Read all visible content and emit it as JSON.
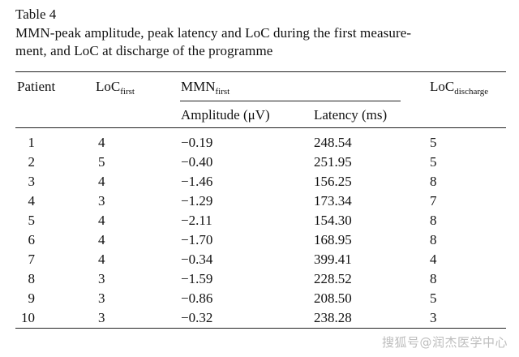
{
  "table": {
    "number": "Table 4",
    "caption_line1": "MMN-peak amplitude, peak latency and LoC during the first measure-",
    "caption_line2": "ment, and LoC at discharge of the programme",
    "headers": {
      "patient": "Patient",
      "loc_first_main": "LoC",
      "loc_first_sub": "first",
      "mmn_main": "MMN",
      "mmn_sub": "first",
      "amplitude": "Amplitude (μV)",
      "latency": "Latency (ms)",
      "loc_discharge_main": "LoC",
      "loc_discharge_sub": "discharge"
    },
    "rows": [
      {
        "patient": "1",
        "loc_first": "4",
        "amplitude": "−0.19",
        "latency": "248.54",
        "loc_discharge": "5"
      },
      {
        "patient": "2",
        "loc_first": "5",
        "amplitude": "−0.40",
        "latency": "251.95",
        "loc_discharge": "5"
      },
      {
        "patient": "3",
        "loc_first": "4",
        "amplitude": "−1.46",
        "latency": "156.25",
        "loc_discharge": "8"
      },
      {
        "patient": "4",
        "loc_first": "3",
        "amplitude": "−1.29",
        "latency": "173.34",
        "loc_discharge": "7"
      },
      {
        "patient": "5",
        "loc_first": "4",
        "amplitude": "−2.11",
        "latency": "154.30",
        "loc_discharge": "8"
      },
      {
        "patient": "6",
        "loc_first": "4",
        "amplitude": "−1.70",
        "latency": "168.95",
        "loc_discharge": "8"
      },
      {
        "patient": "7",
        "loc_first": "4",
        "amplitude": "−0.34",
        "latency": "399.41",
        "loc_discharge": "4"
      },
      {
        "patient": "8",
        "loc_first": "3",
        "amplitude": "−1.59",
        "latency": "228.52",
        "loc_discharge": "8"
      },
      {
        "patient": "9",
        "loc_first": "3",
        "amplitude": "−0.86",
        "latency": "208.50",
        "loc_discharge": "5"
      },
      {
        "patient": "10",
        "loc_first": "3",
        "amplitude": "−0.32",
        "latency": "238.28",
        "loc_discharge": "3"
      }
    ]
  },
  "watermark": "搜狐号@润杰医学中心"
}
